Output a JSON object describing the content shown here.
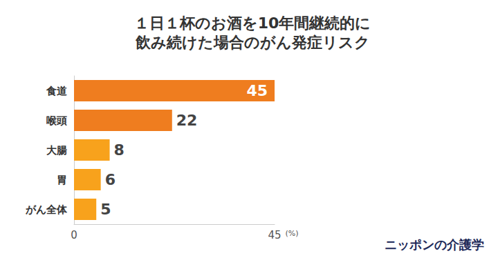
{
  "chart_data": {
    "type": "bar",
    "orientation": "horizontal",
    "title": "１日１杯のお酒を10年間継続的に\n飲み続けた場合のがん発症リスク",
    "categories": [
      "食道",
      "喉頭",
      "大腸",
      "胃",
      "がん全体"
    ],
    "values": [
      45,
      22,
      8,
      6,
      5
    ],
    "colors": [
      "#ef7d1f",
      "#ef7d1f",
      "#f8a21c",
      "#f8a21c",
      "#f8a21c"
    ],
    "xlabel": "(%)",
    "xlim": [
      0,
      45
    ],
    "xticks": [
      0,
      45
    ],
    "grid": false,
    "data_labels": true,
    "annotations": [
      "ニッポンの介護学"
    ]
  }
}
